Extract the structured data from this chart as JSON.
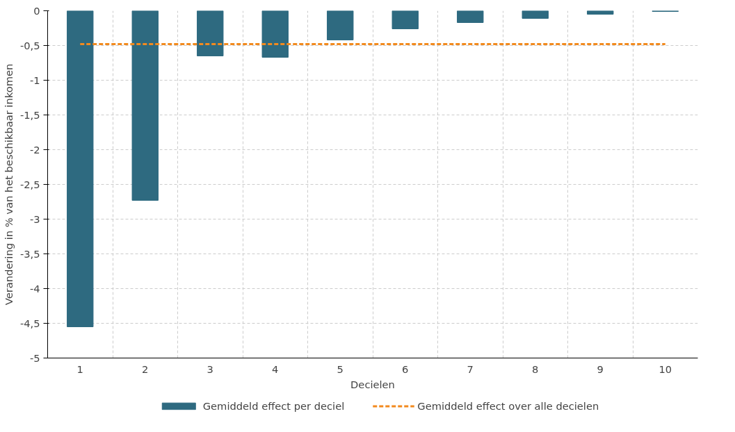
{
  "chart_data": {
    "type": "bar",
    "ylabel": "Verandering in % van het beschikbaar inkomen",
    "xlabel": "Decielen",
    "categories": [
      "1",
      "2",
      "3",
      "4",
      "5",
      "6",
      "7",
      "8",
      "9",
      "10"
    ],
    "series": [
      {
        "name": "Gemiddeld effect per deciel",
        "color": "#2e6a80",
        "values": [
          -4.55,
          -2.73,
          -0.65,
          -0.67,
          -0.42,
          -0.26,
          -0.17,
          -0.11,
          -0.05,
          -0.01
        ]
      },
      {
        "name": "Gemiddeld effect over alle decielen",
        "type": "line",
        "line_style": "dashed",
        "color": "#f28a1e",
        "values": [
          -0.48,
          -0.48,
          -0.48,
          -0.48,
          -0.48,
          -0.48,
          -0.48,
          -0.48,
          -0.48,
          -0.48
        ]
      }
    ],
    "ylim": [
      -5,
      0
    ],
    "yticks": [
      {
        "value": -5,
        "label": "-5"
      },
      {
        "value": -4.5,
        "label": "-4,5"
      },
      {
        "value": -4,
        "label": "-4"
      },
      {
        "value": -3.5,
        "label": "-3,5"
      },
      {
        "value": -3,
        "label": "-3"
      },
      {
        "value": -2.5,
        "label": "-2,5"
      },
      {
        "value": -2,
        "label": "-2"
      },
      {
        "value": -1.5,
        "label": "-1,5"
      },
      {
        "value": -1,
        "label": "-1"
      },
      {
        "value": -0.5,
        "label": "-0,5"
      },
      0
    ],
    "grid": true,
    "legend": "bottom"
  }
}
